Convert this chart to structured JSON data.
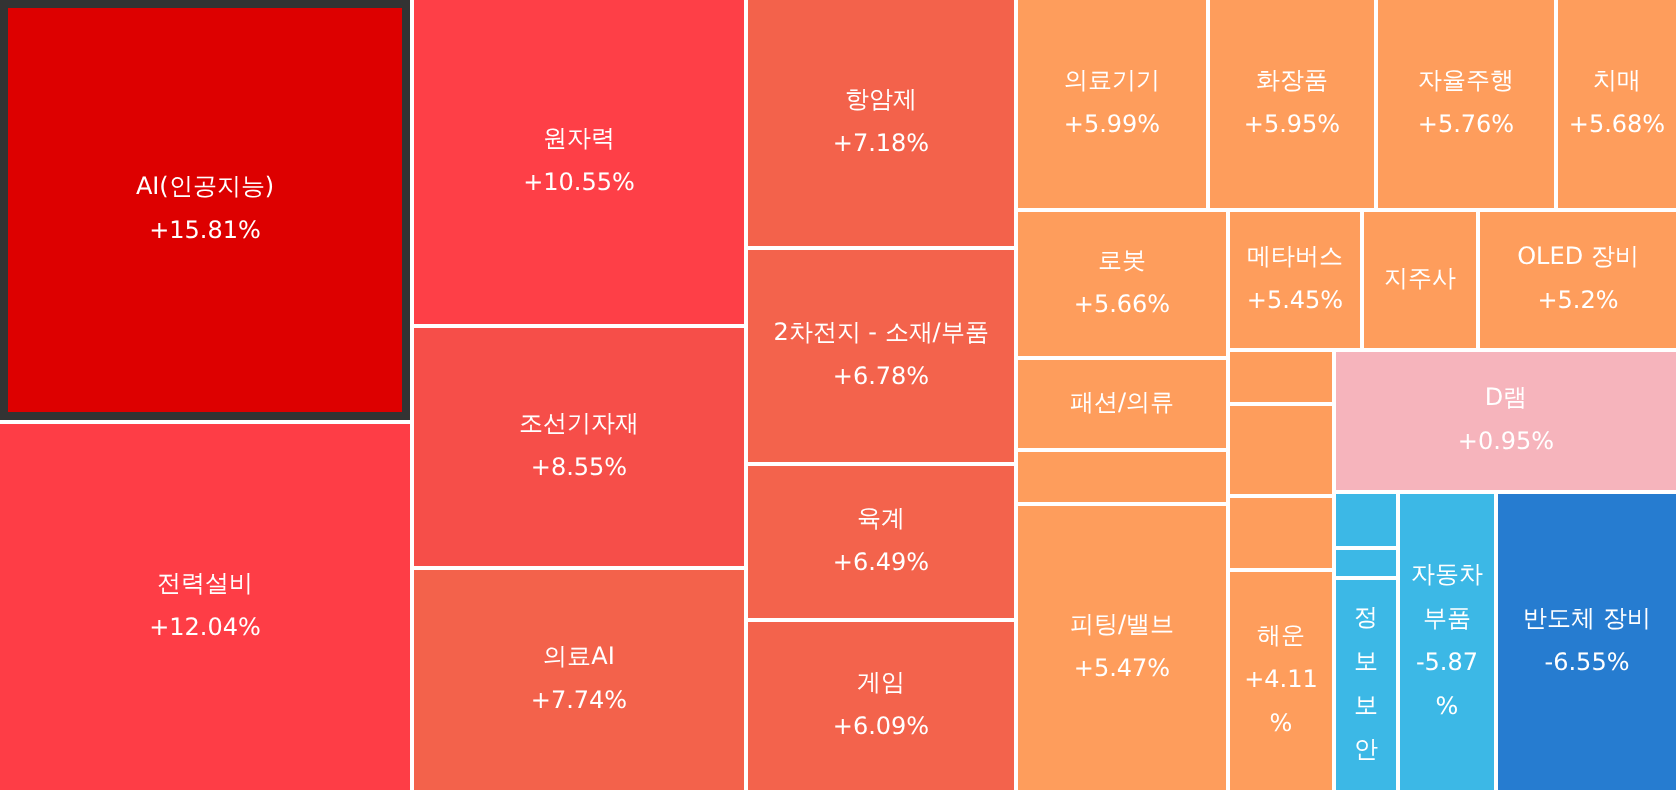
{
  "chart_data": {
    "type": "other",
    "categories": [
      "AI(인공지능)",
      "전력설비",
      "원자력",
      "조선기자재",
      "의료AI",
      "항암제",
      "2차전지 - 소재/부품",
      "육계",
      "게임",
      "의료기기",
      "화장품",
      "자율주행",
      "치매",
      "로봇",
      "메타버스",
      "지주사",
      "OLED 장비",
      "패션/의류",
      null,
      "피팅/밸브",
      null,
      null,
      null,
      "해운",
      "D램",
      null,
      null,
      "정보보안",
      "자동차 부품",
      "반도체 장비"
    ],
    "values": [
      15.81,
      12.04,
      10.55,
      8.55,
      7.74,
      7.18,
      6.78,
      6.49,
      6.09,
      5.99,
      5.95,
      5.76,
      5.68,
      5.66,
      5.45,
      null,
      5.2,
      null,
      null,
      5.47,
      null,
      null,
      null,
      4.11,
      0.95,
      null,
      null,
      null,
      -5.87,
      -6.55
    ],
    "value_labels": [
      "+15.81%",
      "+12.04%",
      "+10.55%",
      "+8.55%",
      "+7.74%",
      "+7.18%",
      "+6.78%",
      "+6.49%",
      "+6.09%",
      "+5.99%",
      "+5.95%",
      "+5.76%",
      "+5.68%",
      "+5.66%",
      "+5.45%",
      null,
      "+5.2%",
      null,
      null,
      "+5.47%",
      null,
      null,
      null,
      "+4.11%",
      "+0.95%",
      null,
      null,
      null,
      "-5.87%",
      "-6.55%"
    ],
    "colors": [
      "#dd0000",
      "#fe3d46",
      "#fe3f47",
      "#f64e49",
      "#f3624b",
      "#f3624b",
      "#f3634c",
      "#f3634c",
      "#f3634c",
      "#fe9d5c",
      "#fe9d5c",
      "#fe9d5c",
      "#fe9d5c",
      "#fe9d5c",
      "#fe9d5c",
      "#fe9d5c",
      "#fe9d5c",
      "#fe9d5c",
      "#fe9d5c",
      "#fe9d5c",
      "#fe9d5c",
      "#fe9d5c",
      "#fe9d5c",
      "#fe9d5c",
      "#f6b4bc",
      "#3cb8e6",
      "#3cb8e6",
      "#3cb8e6",
      "#3cb8e6",
      "#267cd0"
    ]
  }
}
